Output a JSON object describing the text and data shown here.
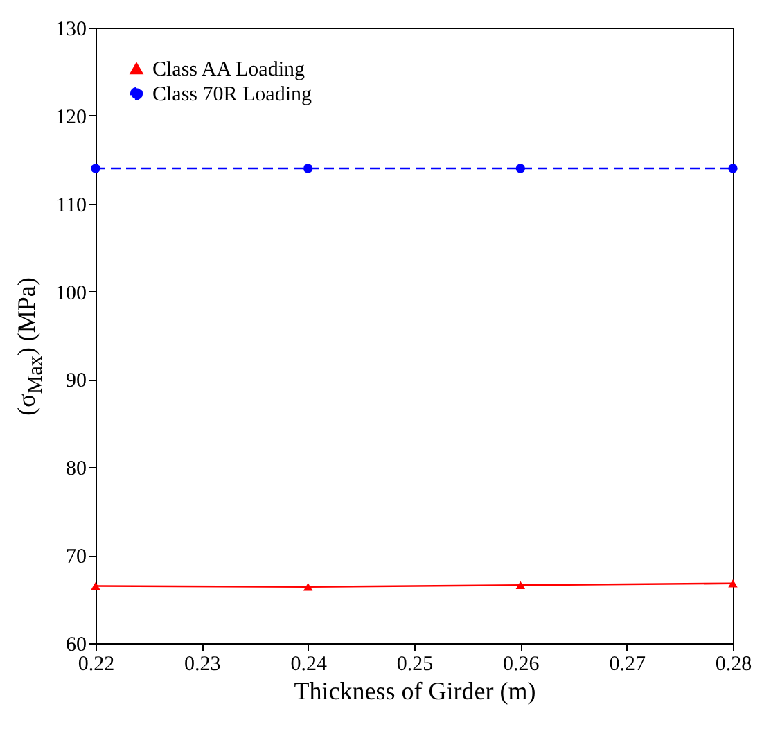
{
  "chart_data": {
    "type": "line",
    "xlabel": "Thickness of Girder (m)",
    "ylabel": "(σ$_{Max}$) (MPa)",
    "x": [
      0.22,
      0.24,
      0.26,
      0.28
    ],
    "xlim": [
      0.22,
      0.28
    ],
    "xticks": [
      0.22,
      0.23,
      0.24,
      0.25,
      0.26,
      0.27,
      0.28
    ],
    "ylim": [
      60,
      130
    ],
    "yticks": [
      60,
      70,
      80,
      90,
      100,
      110,
      120,
      130
    ],
    "grid": false,
    "legend": "top left",
    "series": [
      {
        "name": "Class AA Loading",
        "color": "#ff0000",
        "marker": "triangle",
        "line_style": "solid",
        "values": [
          66.5,
          66.4,
          66.6,
          66.8
        ]
      },
      {
        "name": "Class 70R Loading",
        "color": "#0000ff",
        "marker": "circle",
        "line_style": "dashed",
        "values": [
          114,
          114,
          114,
          114
        ]
      }
    ]
  }
}
